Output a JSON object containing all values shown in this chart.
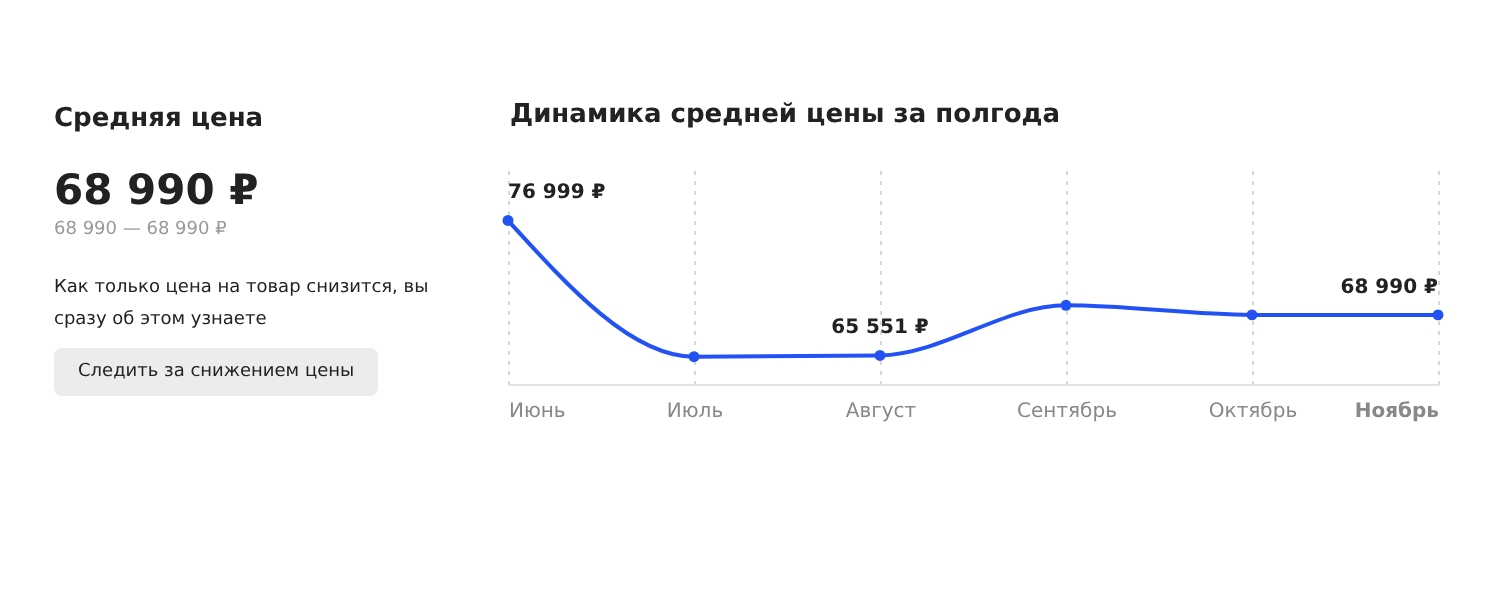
{
  "chart_data": [
    {
      "type": "other",
      "title": "Средняя цена",
      "annotations": [
        "68 990 ₽",
        "68 990 — 68 990 ₽",
        "Как только цена на товар снизится, вы сразу об этом узнаете",
        "Следить за снижением цены"
      ]
    },
    {
      "type": "line",
      "title": "Динамика средней цены за полгода",
      "categories": [
        "Июнь",
        "Июль",
        "Август",
        "Сентябрь",
        "Октябрь",
        "Ноябрь"
      ],
      "series": [
        {
          "color": "#2352f4",
          "values": [
            76999,
            65440,
            65551,
            69800,
            68990,
            68990
          ],
          "value_labels": [
            "76 999 ₽",
            null,
            "65 551 ₽",
            null,
            null,
            "68 990 ₽"
          ]
        }
      ],
      "marker": "circle",
      "grid": "x",
      "tick_labels": "x"
    }
  ]
}
